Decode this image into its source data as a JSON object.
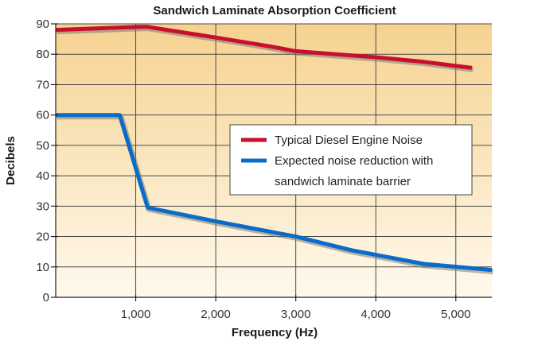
{
  "chart_data": {
    "type": "line",
    "title": "Sandwich Laminate Absorption Coefficient",
    "xlabel": "Frequency (Hz)",
    "ylabel": "Decibels",
    "xlim": [
      0,
      5450
    ],
    "ylim": [
      0,
      90
    ],
    "x_ticks": [
      1000,
      2000,
      3000,
      4000,
      5000
    ],
    "x_tick_labels": [
      "1,000",
      "2,000",
      "3,000",
      "4,000",
      "5,000"
    ],
    "y_ticks": [
      0,
      10,
      20,
      30,
      40,
      50,
      60,
      70,
      80,
      90
    ],
    "y_tick_labels": [
      "0",
      "10",
      "20",
      "30",
      "40",
      "50",
      "60",
      "70",
      "80",
      "90"
    ],
    "grid": true,
    "legend_position": "right",
    "background_gradient": [
      "#f6d290",
      "#fff9ec"
    ],
    "series": [
      {
        "name": "Typical Diesel Engine Noise",
        "color": "#c8102e",
        "x": [
          0,
          1050,
          1150,
          2000,
          2700,
          3000,
          4000,
          4600,
          5200
        ],
        "y": [
          88,
          89,
          89,
          85.5,
          82.5,
          81,
          79,
          77.5,
          75.5
        ]
      },
      {
        "name": "Expected noise reduction with sandwich laminate barrier",
        "legend_lines": [
          "Expected noise reduction with",
          "sandwich laminate barrier"
        ],
        "color": "#0a6cc8",
        "x": [
          0,
          800,
          1150,
          2000,
          2700,
          3000,
          3700,
          4600,
          5450
        ],
        "y": [
          60,
          60,
          29.5,
          25,
          21.5,
          20,
          15.5,
          11,
          9
        ]
      }
    ]
  }
}
